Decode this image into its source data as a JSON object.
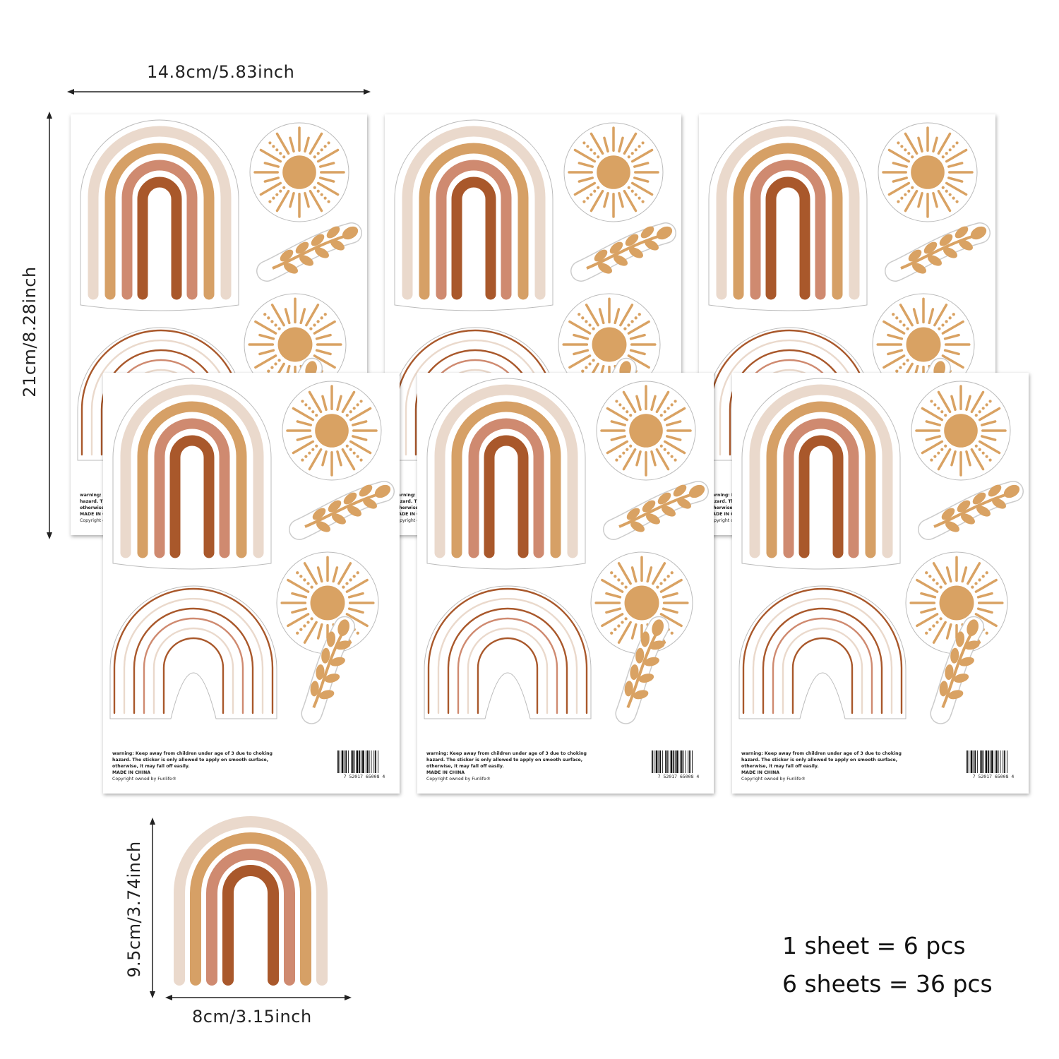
{
  "dimensions": {
    "sheet_width": "14.8cm/5.83inch",
    "sheet_height": "21cm/8.28inch",
    "rainbow_height": "9.5cm/3.74inch",
    "rainbow_width": "8cm/3.15inch"
  },
  "sheet": {
    "warning_line1": "warning: Keep away from children under age of 3 due to choking",
    "warning_line2": "hazard. The sticker is only allowed to apply on smooth surface,",
    "warning_line3": "otherwise, it may fall off easily.",
    "made_in": "MADE IN CHINA",
    "copyright": "Copyright owned by Funlife®",
    "barcode_number": "7  52017  65008  4"
  },
  "summary": {
    "line1": "1 sheet = 6 pcs",
    "line2": "6 sheets = 36 pcs"
  },
  "colors": {
    "rust": "#a9582b",
    "terracotta": "#cf8a70",
    "ochre": "#d6a066",
    "cream": "#ead9cc",
    "sun": "#d9a263"
  }
}
